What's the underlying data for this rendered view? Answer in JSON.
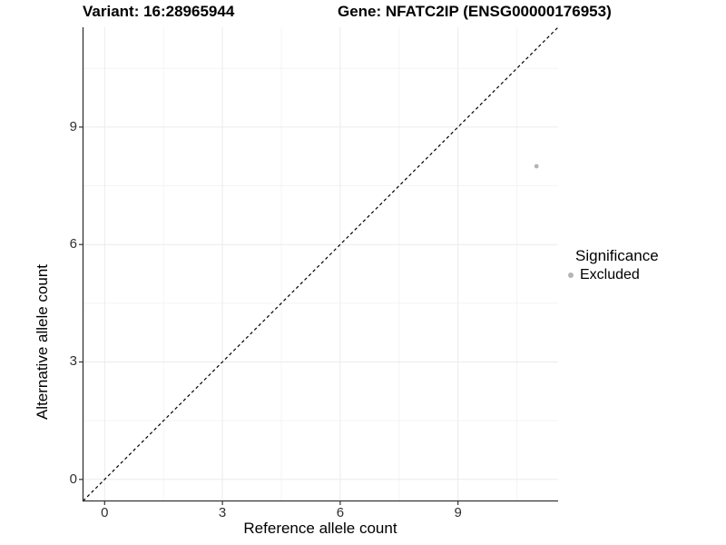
{
  "header": {
    "variant_title": "Variant: 16:28965944",
    "gene_title": "Gene: NFATC2IP (ENSG00000176953)"
  },
  "chart_data": {
    "type": "scatter",
    "titles": [
      "Variant: 16:28965944",
      "Gene: NFATC2IP (ENSG00000176953)"
    ],
    "xlabel": "Reference allele count",
    "ylabel": "Alternative allele count",
    "xlim": [
      -0.55,
      11.55
    ],
    "ylim": [
      -0.55,
      11.55
    ],
    "x_ticks": [
      0,
      3,
      6,
      9
    ],
    "y_ticks": [
      0,
      3,
      6,
      9
    ],
    "x_minor_ticks": [
      1.5,
      4.5,
      7.5,
      10.5
    ],
    "y_minor_ticks": [
      1.5,
      4.5,
      7.5,
      10.5
    ],
    "grid": "major+minor",
    "reference_line": {
      "type": "identity",
      "style": "dashed"
    },
    "series": [
      {
        "name": "Excluded",
        "points": [
          {
            "x": 11,
            "y": 8
          }
        ]
      }
    ],
    "legend": {
      "title": "Significance",
      "position": "right",
      "items": [
        {
          "label": "Excluded",
          "color": "#b4b4b4"
        }
      ]
    }
  },
  "colors": {
    "background": "#ffffff",
    "point": "#b4b4b4",
    "grid_major": "#ebebeb",
    "grid_minor": "#f4f4f4",
    "axis_line": "#333333",
    "tick_mark": "#333333",
    "reference_line": "#000000",
    "text": "#000000"
  }
}
